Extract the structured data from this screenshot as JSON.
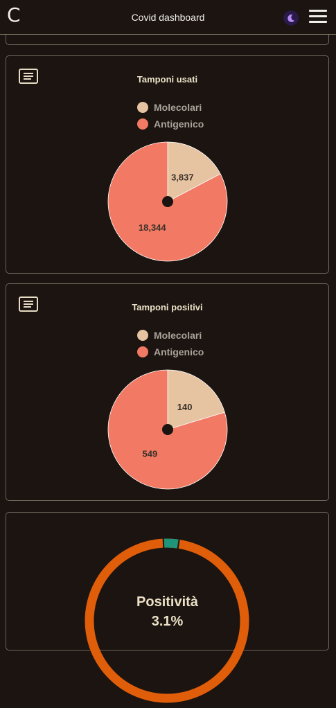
{
  "header": {
    "brand": "C",
    "title": "Covid dashboard"
  },
  "colors": {
    "background": "#1b1410",
    "molecolari": "#e6c3a1",
    "antigenico": "#f27a64",
    "gauge_track": "#e05d0a",
    "gauge_marker": "#1f9478",
    "toggle": "#2a1a4a"
  },
  "cards": {
    "tamponi_usati": {
      "title": "Tamponi usati",
      "legend": [
        "Molecolari",
        "Antigenico"
      ],
      "value_labels": [
        "3,837",
        "18,344"
      ]
    },
    "tamponi_positivi": {
      "title": "Tamponi positivi",
      "legend": [
        "Molecolari",
        "Antigenico"
      ],
      "value_labels": [
        "140",
        "549"
      ]
    },
    "positivita": {
      "label": "Positività",
      "value": "3.1%"
    }
  },
  "chart_data": [
    {
      "type": "pie",
      "title": "Tamponi usati",
      "categories": [
        "Molecolari",
        "Antigenico"
      ],
      "values": [
        3837,
        18344
      ]
    },
    {
      "type": "pie",
      "title": "Tamponi positivi",
      "categories": [
        "Molecolari",
        "Antigenico"
      ],
      "values": [
        140,
        549
      ]
    },
    {
      "type": "gauge",
      "title": "Positività",
      "values": [
        3.1
      ],
      "unit": "%"
    }
  ],
  "icons": {
    "theme_toggle": "moon-icon",
    "menu": "hamburger-menu-icon",
    "card_details": "notes-icon"
  }
}
